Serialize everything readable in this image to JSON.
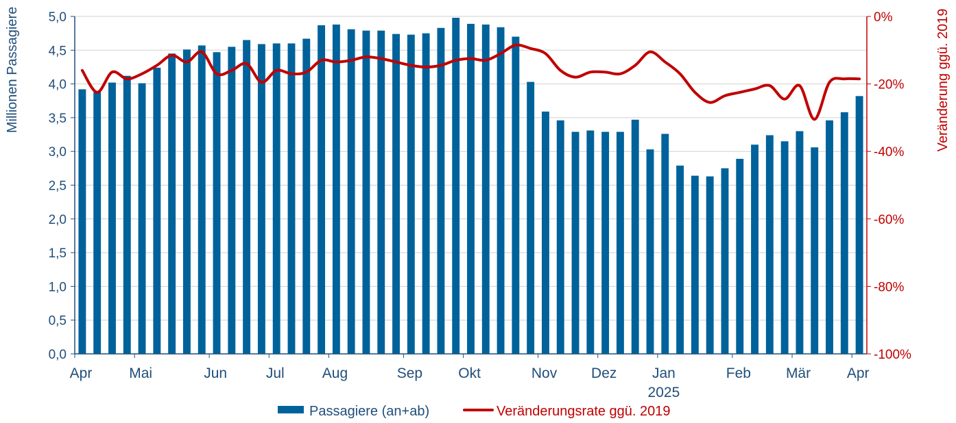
{
  "chart_data": {
    "type": "bar",
    "colors": {
      "bar": "#00629b",
      "line": "#c00000",
      "grid": "#d0d0d0",
      "left_axis": "#1f4e79",
      "right_axis": "#c00000"
    },
    "ylabel_left": "Millionen Passagiere",
    "ylabel_right": "Veränderung ggü. 2019",
    "ylim_left": [
      0,
      5
    ],
    "ylim_right": [
      -100,
      0
    ],
    "yticks_left": [
      "0,0",
      "0,5",
      "1,0",
      "1,5",
      "2,0",
      "2,5",
      "3,0",
      "3,5",
      "4,0",
      "4,5",
      "5,0"
    ],
    "yticks_right": [
      "-100%",
      "-80%",
      "-60%",
      "-40%",
      "-20%",
      "0%"
    ],
    "month_labels": [
      {
        "text": "Apr",
        "week": 0
      },
      {
        "text": "Mai",
        "week": 4
      },
      {
        "text": "Jun",
        "week": 9
      },
      {
        "text": "Jul",
        "week": 13
      },
      {
        "text": "Aug",
        "week": 17
      },
      {
        "text": "Sep",
        "week": 22
      },
      {
        "text": "Okt",
        "week": 26
      },
      {
        "text": "Nov",
        "week": 31
      },
      {
        "text": "Dez",
        "week": 35
      },
      {
        "text": "Jan",
        "week": 39
      },
      {
        "text": "Feb",
        "week": 44
      },
      {
        "text": "Mär",
        "week": 48
      },
      {
        "text": "Apr",
        "week": 52
      }
    ],
    "year_label": {
      "text": "2025",
      "week": 39
    },
    "grid": true,
    "legend_position": "bottom",
    "series": [
      {
        "name": "Passagiere (an+ab)",
        "type": "bar",
        "values": [
          3.92,
          3.88,
          4.02,
          4.12,
          4.01,
          4.24,
          4.45,
          4.51,
          4.57,
          4.47,
          4.55,
          4.65,
          4.59,
          4.6,
          4.6,
          4.67,
          4.87,
          4.88,
          4.81,
          4.79,
          4.79,
          4.74,
          4.73,
          4.75,
          4.83,
          4.98,
          4.89,
          4.88,
          4.84,
          4.7,
          4.03,
          3.59,
          3.46,
          3.29,
          3.31,
          3.29,
          3.29,
          3.47,
          3.03,
          3.26,
          2.79,
          2.64,
          2.63,
          2.75,
          2.89,
          3.1,
          3.24,
          3.15,
          3.3,
          3.06,
          3.46,
          3.58,
          3.82
        ]
      },
      {
        "name": "Veränderungsrate ggü. 2019",
        "type": "line",
        "values": [
          -16,
          -22.5,
          -16.5,
          -18.5,
          -17,
          -14.5,
          -11.5,
          -13.5,
          -10.5,
          -17,
          -16,
          -14,
          -19.5,
          -16,
          -17,
          -16.5,
          -13,
          -13.5,
          -13,
          -12,
          -12.5,
          -13.5,
          -14.5,
          -15,
          -14.5,
          -13,
          -12.5,
          -13,
          -11,
          -8.5,
          -9.5,
          -11,
          -16,
          -18,
          -16.5,
          -16.5,
          -17,
          -14.5,
          -10.5,
          -13.5,
          -17,
          -22.5,
          -25.5,
          -23.5,
          -22.5,
          -21.5,
          -20.5,
          -24.5,
          -20.5,
          -30.5,
          -19.5,
          -18.5,
          -18.5
        ]
      }
    ]
  }
}
